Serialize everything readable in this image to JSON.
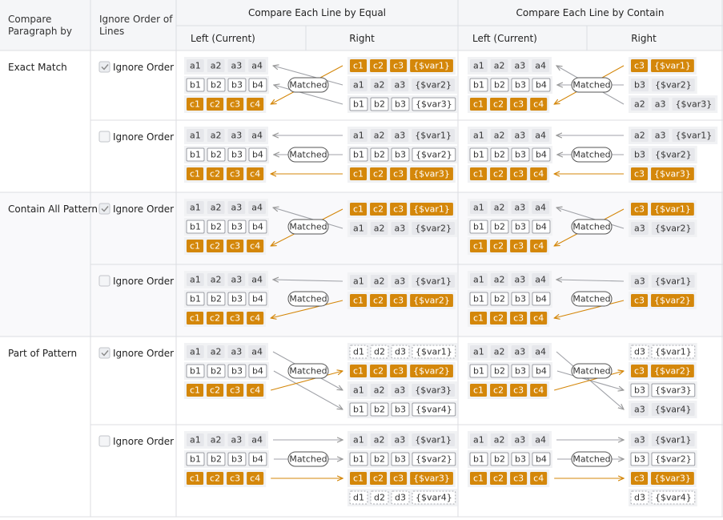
{
  "header": {
    "paragraph": "Compare Paragraph by",
    "ignore_order": "Ignore Order of Lines",
    "equal": "Compare Each Line by Equal",
    "contain": "Compare Each Line by Contain",
    "equal_left": "Left (Current)",
    "equal_right": "Right",
    "contain_left": "Left (Current)",
    "contain_right": "Right"
  },
  "groups": [
    {
      "label": "Exact Match",
      "arrows": "to-left",
      "rows": [
        {
          "checked": true,
          "option": "Ignore Order",
          "equal": {
            "left": [
              {
                "style": "fill",
                "tokens": [
                  "a1",
                  "a2",
                  "a3",
                  "a4"
                ]
              },
              {
                "style": "outline",
                "tokens": [
                  "b1",
                  "b2",
                  "b3",
                  "b4"
                ]
              },
              {
                "style": "orange",
                "tokens": [
                  "c1",
                  "c2",
                  "c3",
                  "c4"
                ]
              }
            ],
            "right": [
              {
                "style": "orange",
                "tokens": [
                  "c1",
                  "c2",
                  "c3",
                  "{$var1}"
                ]
              },
              {
                "style": "fill",
                "tokens": [
                  "a1",
                  "a2",
                  "a3",
                  "{$var2}"
                ]
              },
              {
                "style": "outline",
                "tokens": [
                  "b1",
                  "b2",
                  "b3",
                  "{$var3}"
                ]
              }
            ],
            "matched": "Matched",
            "links": [
              [
                2,
                0
              ],
              [
                0,
                1
              ],
              [
                1,
                2
              ]
            ]
          },
          "contain": {
            "left": [
              {
                "style": "fill",
                "tokens": [
                  "a1",
                  "a2",
                  "a3",
                  "a4"
                ]
              },
              {
                "style": "outline",
                "tokens": [
                  "b1",
                  "b2",
                  "b3",
                  "b4"
                ]
              },
              {
                "style": "orange",
                "tokens": [
                  "c1",
                  "c2",
                  "c3",
                  "c4"
                ]
              }
            ],
            "right": [
              {
                "style": "orange",
                "tokens": [
                  "c3",
                  "{$var1}"
                ]
              },
              {
                "style": "fill",
                "tokens": [
                  "b3",
                  "{$var2}"
                ]
              },
              {
                "style": "fill",
                "tokens": [
                  "a2",
                  "a3",
                  "{$var3}"
                ]
              }
            ],
            "matched": "Matched",
            "links": [
              [
                2,
                0
              ],
              [
                1,
                1
              ],
              [
                0,
                2
              ]
            ]
          }
        },
        {
          "checked": false,
          "option": "Ignore Order",
          "equal": {
            "left": [
              {
                "style": "fill",
                "tokens": [
                  "a1",
                  "a2",
                  "a3",
                  "a4"
                ]
              },
              {
                "style": "outline",
                "tokens": [
                  "b1",
                  "b2",
                  "b3",
                  "b4"
                ]
              },
              {
                "style": "orange",
                "tokens": [
                  "c1",
                  "c2",
                  "c3",
                  "c4"
                ]
              }
            ],
            "right": [
              {
                "style": "fill",
                "tokens": [
                  "a1",
                  "a2",
                  "a3",
                  "{$var1}"
                ]
              },
              {
                "style": "outline",
                "tokens": [
                  "b1",
                  "b2",
                  "b3",
                  "{$var2}"
                ]
              },
              {
                "style": "orange",
                "tokens": [
                  "c1",
                  "c2",
                  "c3",
                  "{$var3}"
                ]
              }
            ],
            "matched": "Matched",
            "links": [
              [
                0,
                0
              ],
              [
                1,
                1
              ],
              [
                2,
                2
              ]
            ]
          },
          "contain": {
            "left": [
              {
                "style": "fill",
                "tokens": [
                  "a1",
                  "a2",
                  "a3",
                  "a4"
                ]
              },
              {
                "style": "outline",
                "tokens": [
                  "b1",
                  "b2",
                  "b3",
                  "b4"
                ]
              },
              {
                "style": "orange",
                "tokens": [
                  "c1",
                  "c2",
                  "c3",
                  "c4"
                ]
              }
            ],
            "right": [
              {
                "style": "fill",
                "tokens": [
                  "a2",
                  "a3",
                  "{$var1}"
                ]
              },
              {
                "style": "fill",
                "tokens": [
                  "b3",
                  "{$var2}"
                ]
              },
              {
                "style": "orange",
                "tokens": [
                  "c3",
                  "{$var3}"
                ]
              }
            ],
            "matched": "Matched",
            "links": [
              [
                0,
                0
              ],
              [
                1,
                1
              ],
              [
                2,
                2
              ]
            ]
          }
        }
      ]
    },
    {
      "label": "Contain All Pattern",
      "arrows": "to-left",
      "rows": [
        {
          "checked": true,
          "option": "Ignore Order",
          "equal": {
            "left": [
              {
                "style": "fill",
                "tokens": [
                  "a1",
                  "a2",
                  "a3",
                  "a4"
                ]
              },
              {
                "style": "outline",
                "tokens": [
                  "b1",
                  "b2",
                  "b3",
                  "b4"
                ]
              },
              {
                "style": "orange",
                "tokens": [
                  "c1",
                  "c2",
                  "c3",
                  "c4"
                ]
              }
            ],
            "right": [
              {
                "style": "orange",
                "tokens": [
                  "c1",
                  "c2",
                  "c3",
                  "{$var1}"
                ]
              },
              {
                "style": "fill",
                "tokens": [
                  "a1",
                  "a2",
                  "a3",
                  "{$var2}"
                ]
              }
            ],
            "matched": "Matched",
            "links": [
              [
                2,
                0
              ],
              [
                0,
                1
              ]
            ]
          },
          "contain": {
            "left": [
              {
                "style": "fill",
                "tokens": [
                  "a1",
                  "a2",
                  "a3",
                  "a4"
                ]
              },
              {
                "style": "outline",
                "tokens": [
                  "b1",
                  "b2",
                  "b3",
                  "b4"
                ]
              },
              {
                "style": "orange",
                "tokens": [
                  "c1",
                  "c2",
                  "c3",
                  "c4"
                ]
              }
            ],
            "right": [
              {
                "style": "orange",
                "tokens": [
                  "c3",
                  "{$var1}"
                ]
              },
              {
                "style": "fill",
                "tokens": [
                  "a3",
                  "{$var2}"
                ]
              }
            ],
            "matched": "Matched",
            "links": [
              [
                2,
                0
              ],
              [
                0,
                1
              ]
            ]
          }
        },
        {
          "checked": false,
          "option": "Ignore Order",
          "equal": {
            "left": [
              {
                "style": "fill",
                "tokens": [
                  "a1",
                  "a2",
                  "a3",
                  "a4"
                ]
              },
              {
                "style": "outline",
                "tokens": [
                  "b1",
                  "b2",
                  "b3",
                  "b4"
                ]
              },
              {
                "style": "orange",
                "tokens": [
                  "c1",
                  "c2",
                  "c3",
                  "c4"
                ]
              }
            ],
            "right": [
              {
                "style": "fill",
                "tokens": [
                  "a1",
                  "a2",
                  "a3",
                  "{$var1}"
                ]
              },
              {
                "style": "orange",
                "tokens": [
                  "c1",
                  "c2",
                  "c3",
                  "{$var2}"
                ]
              }
            ],
            "matched": "Matched",
            "links": [
              [
                0,
                0
              ],
              [
                2,
                1
              ]
            ]
          },
          "contain": {
            "left": [
              {
                "style": "fill",
                "tokens": [
                  "a1",
                  "a2",
                  "a3",
                  "a4"
                ]
              },
              {
                "style": "outline",
                "tokens": [
                  "b1",
                  "b2",
                  "b3",
                  "b4"
                ]
              },
              {
                "style": "orange",
                "tokens": [
                  "c1",
                  "c2",
                  "c3",
                  "c4"
                ]
              }
            ],
            "right": [
              {
                "style": "fill",
                "tokens": [
                  "a3",
                  "{$var1}"
                ]
              },
              {
                "style": "orange",
                "tokens": [
                  "c3",
                  "{$var2}"
                ]
              }
            ],
            "matched": "Matched",
            "links": [
              [
                0,
                0
              ],
              [
                2,
                1
              ]
            ]
          }
        }
      ]
    },
    {
      "label": "Part of Pattern",
      "arrows": "to-right",
      "rows": [
        {
          "checked": true,
          "option": "Ignore Order",
          "equal": {
            "left": [
              {
                "style": "fill",
                "tokens": [
                  "a1",
                  "a2",
                  "a3",
                  "a4"
                ]
              },
              {
                "style": "outline",
                "tokens": [
                  "b1",
                  "b2",
                  "b3",
                  "b4"
                ]
              },
              {
                "style": "orange",
                "tokens": [
                  "c1",
                  "c2",
                  "c3",
                  "c4"
                ]
              }
            ],
            "right": [
              {
                "style": "dashed",
                "tokens": [
                  "d1",
                  "d2",
                  "d3",
                  "{$var1}"
                ]
              },
              {
                "style": "orange",
                "tokens": [
                  "c1",
                  "c2",
                  "c3",
                  "{$var2}"
                ]
              },
              {
                "style": "fill",
                "tokens": [
                  "a1",
                  "a2",
                  "a3",
                  "{$var3}"
                ]
              },
              {
                "style": "outline",
                "tokens": [
                  "b1",
                  "b2",
                  "b3",
                  "{$var4}"
                ]
              }
            ],
            "matched": "Matched",
            "links": [
              [
                0,
                2
              ],
              [
                1,
                3
              ],
              [
                2,
                1
              ]
            ]
          },
          "contain": {
            "left": [
              {
                "style": "fill",
                "tokens": [
                  "a1",
                  "a2",
                  "a3",
                  "a4"
                ]
              },
              {
                "style": "outline",
                "tokens": [
                  "b1",
                  "b2",
                  "b3",
                  "b4"
                ]
              },
              {
                "style": "orange",
                "tokens": [
                  "c1",
                  "c2",
                  "c3",
                  "c4"
                ]
              }
            ],
            "right": [
              {
                "style": "dashed",
                "tokens": [
                  "d3",
                  "{$var1}"
                ]
              },
              {
                "style": "orange",
                "tokens": [
                  "c3",
                  "{$var2}"
                ]
              },
              {
                "style": "outline",
                "tokens": [
                  "b3",
                  "{$var3}"
                ]
              },
              {
                "style": "fill",
                "tokens": [
                  "a3",
                  "{$var4}"
                ]
              }
            ],
            "matched": "Matched",
            "links": [
              [
                0,
                3
              ],
              [
                1,
                2
              ],
              [
                2,
                1
              ]
            ]
          }
        },
        {
          "checked": false,
          "option": "Ignore Order",
          "equal": {
            "left": [
              {
                "style": "fill",
                "tokens": [
                  "a1",
                  "a2",
                  "a3",
                  "a4"
                ]
              },
              {
                "style": "outline",
                "tokens": [
                  "b1",
                  "b2",
                  "b3",
                  "b4"
                ]
              },
              {
                "style": "orange",
                "tokens": [
                  "c1",
                  "c2",
                  "c3",
                  "c4"
                ]
              }
            ],
            "right": [
              {
                "style": "fill",
                "tokens": [
                  "a1",
                  "a2",
                  "a3",
                  "{$var1}"
                ]
              },
              {
                "style": "outline",
                "tokens": [
                  "b1",
                  "b2",
                  "b3",
                  "{$var2}"
                ]
              },
              {
                "style": "orange",
                "tokens": [
                  "c1",
                  "c2",
                  "c3",
                  "{$var3}"
                ]
              },
              {
                "style": "dashed",
                "tokens": [
                  "d1",
                  "d2",
                  "d3",
                  "{$var4}"
                ]
              }
            ],
            "matched": "Matched",
            "links": [
              [
                0,
                0
              ],
              [
                1,
                1
              ],
              [
                2,
                2
              ]
            ]
          },
          "contain": {
            "left": [
              {
                "style": "fill",
                "tokens": [
                  "a1",
                  "a2",
                  "a3",
                  "a4"
                ]
              },
              {
                "style": "outline",
                "tokens": [
                  "b1",
                  "b2",
                  "b3",
                  "b4"
                ]
              },
              {
                "style": "orange",
                "tokens": [
                  "c1",
                  "c2",
                  "c3",
                  "c4"
                ]
              }
            ],
            "right": [
              {
                "style": "fill",
                "tokens": [
                  "a3",
                  "{$var1}"
                ]
              },
              {
                "style": "outline",
                "tokens": [
                  "b3",
                  "{$var2}"
                ]
              },
              {
                "style": "orange",
                "tokens": [
                  "c3",
                  "{$var3}"
                ]
              },
              {
                "style": "dashed",
                "tokens": [
                  "d3",
                  "{$var4}"
                ]
              }
            ],
            "matched": "Matched",
            "links": [
              [
                0,
                0
              ],
              [
                1,
                1
              ],
              [
                2,
                2
              ]
            ]
          }
        }
      ]
    }
  ]
}
